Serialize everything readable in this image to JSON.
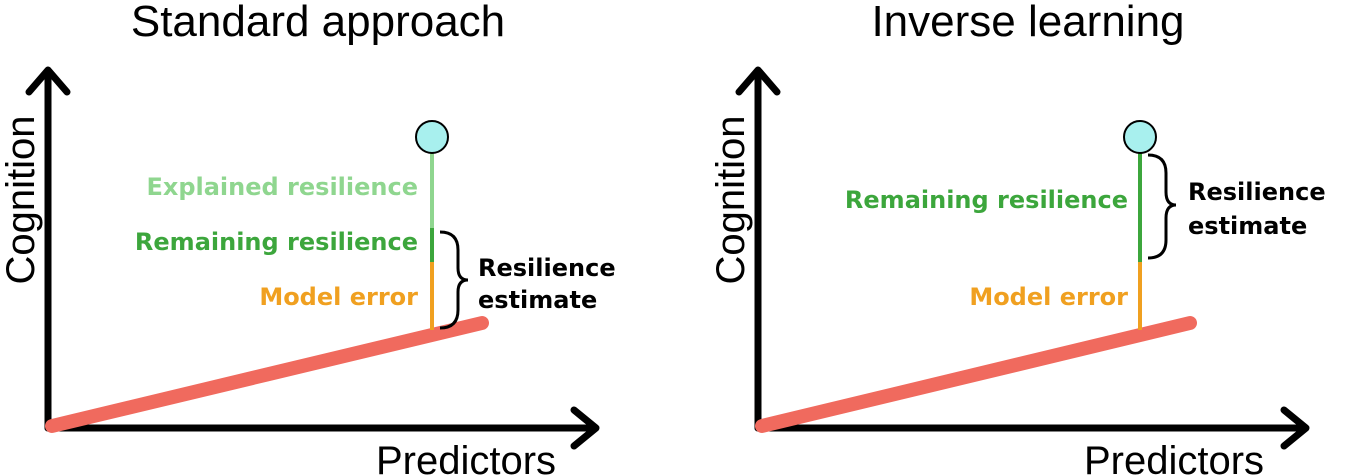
{
  "colors": {
    "regression_line": "#f06a5e",
    "explained": "#8fd68f",
    "remaining": "#3ca63c",
    "model_error": "#f0a020",
    "observation_fill": "#a8f0ee",
    "axis": "#000000"
  },
  "panels": [
    {
      "title": "Standard approach",
      "xlabel": "Predictors",
      "ylabel": "Cognition",
      "labels": {
        "explained": "Explained resilience",
        "remaining": "Remaining resilience",
        "model_error": "Model error"
      },
      "estimate_line1": "Resilience",
      "estimate_line2": "estimate"
    },
    {
      "title": "Inverse learning",
      "xlabel": "Predictors",
      "ylabel": "Cognition",
      "labels": {
        "remaining": "Remaining resilience",
        "model_error": "Model error"
      },
      "estimate_line1": "Resilience",
      "estimate_line2": "estimate"
    }
  ]
}
